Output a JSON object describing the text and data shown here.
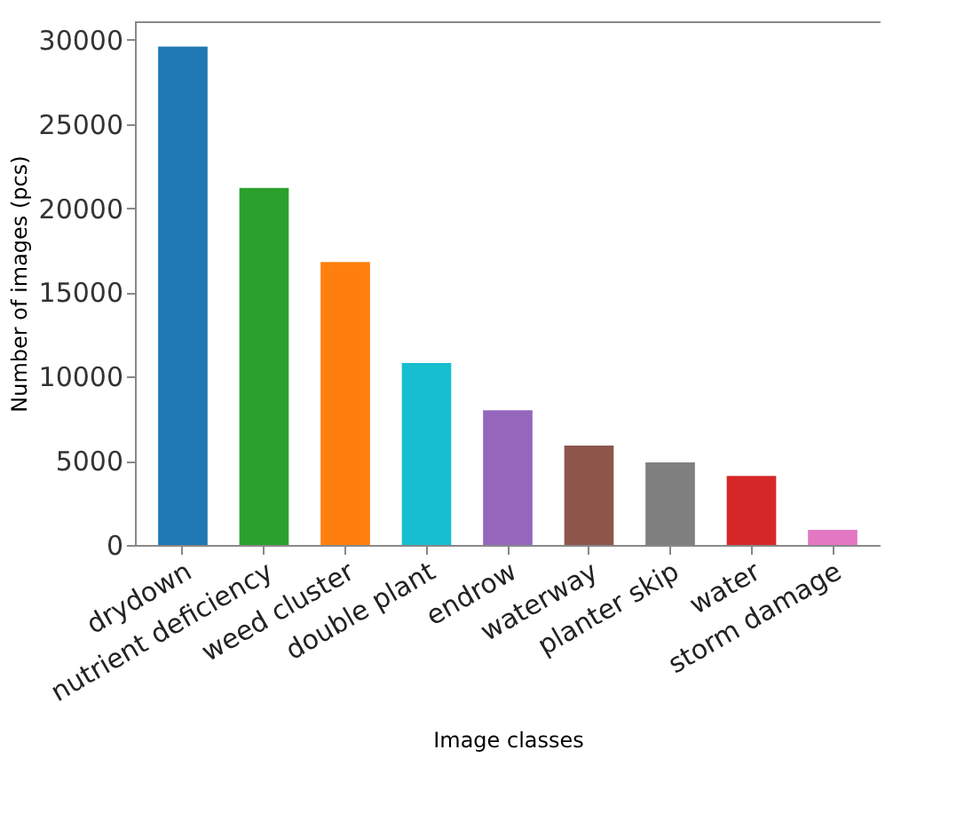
{
  "chart_data": {
    "type": "bar",
    "xlabel": "Image classes",
    "ylabel": "Number of images (pcs)",
    "categories": [
      "drydown",
      "nutrient deficiency",
      "weed cluster",
      "double plant",
      "endrow",
      "waterway",
      "planter skip",
      "water",
      "storm damage"
    ],
    "values": [
      29600,
      21200,
      16800,
      10800,
      8000,
      5900,
      4900,
      4100,
      900
    ],
    "colors": [
      "#1f77b4",
      "#2ca02c",
      "#ff7f0e",
      "#17becf",
      "#9467bd",
      "#8c564b",
      "#7f7f7f",
      "#d62728",
      "#e377c2"
    ],
    "ylim": [
      0,
      31100
    ],
    "yticks": [
      0,
      5000,
      10000,
      15000,
      20000,
      25000,
      30000
    ],
    "grid": false,
    "legend": false
  }
}
